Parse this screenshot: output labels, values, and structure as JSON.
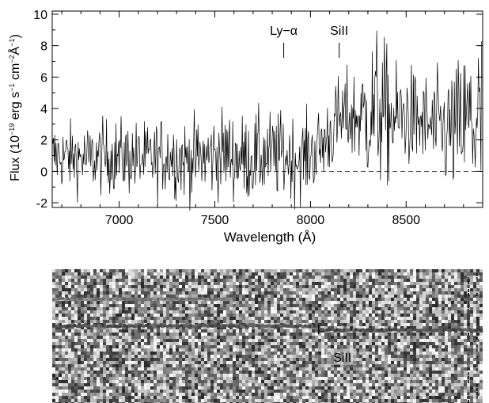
{
  "chart_data": [
    {
      "type": "line",
      "title": "",
      "xlabel": "Wavelength (Å)",
      "ylabel_parts": {
        "prefix": "Flux (10",
        "exp1": "−19",
        "mid1": " erg s",
        "exp2": "−1",
        "mid2": " cm",
        "exp3": "−2",
        "mid3": "Å",
        "exp4": "−1",
        "suffix": ")"
      },
      "xlim": [
        6650,
        8900
      ],
      "ylim": [
        -2.3,
        10.2
      ],
      "xticks": [
        7000,
        7500,
        8000,
        8500
      ],
      "yticks": [
        -2,
        0,
        2,
        4,
        6,
        8,
        10
      ],
      "zero_line": {
        "y": 0,
        "style": "dashed"
      },
      "annotations": [
        {
          "text": "Ly−α",
          "x": 7860
        },
        {
          "text": "SiII",
          "x": 8150
        }
      ],
      "series": [
        {
          "x": [
            6650,
            6750,
            6850,
            6950,
            7050,
            7150,
            7250,
            7350,
            7450,
            7550,
            7650,
            7750,
            7850,
            7950,
            8050,
            8100,
            8150,
            8200,
            8250,
            8300,
            8350,
            8400,
            8450,
            8500,
            8550,
            8600,
            8650,
            8700,
            8750,
            8800,
            8850,
            8900
          ],
          "values": [
            1.0,
            0.9,
            0.8,
            1.0,
            0.9,
            0.7,
            1.1,
            0.7,
            0.9,
            1.2,
            0.8,
            1.0,
            1.0,
            0.8,
            1.5,
            2.4,
            3.2,
            3.5,
            3.4,
            3.6,
            4.0,
            3.5,
            3.2,
            3.6,
            3.2,
            3.0,
            2.7,
            2.6,
            2.5,
            3.0,
            3.1,
            3.0
          ],
          "noise_sigma": [
            1.1,
            1.1,
            1.1,
            1.2,
            1.2,
            1.2,
            1.3,
            1.3,
            1.3,
            1.4,
            1.4,
            1.4,
            1.4,
            1.3,
            1.3,
            1.4,
            1.4,
            1.5,
            1.6,
            2.2,
            2.6,
            2.2,
            1.8,
            1.7,
            1.6,
            1.6,
            1.7,
            1.9,
            2.1,
            2.4,
            3.0,
            3.4
          ]
        }
      ]
    },
    {
      "type": "heatmap",
      "title": "",
      "annotations": [
        {
          "text": "SiII",
          "x": 8150
        }
      ],
      "traces": [
        {
          "row_fraction": 0.22,
          "from_x_fraction": 0.0,
          "to_x_fraction": 0.42,
          "strength": 0.55
        },
        {
          "row_fraction": 0.42,
          "from_x_fraction": 0.0,
          "to_x_fraction": 0.62,
          "strength": 0.8
        },
        {
          "row_fraction": 0.45,
          "from_x_fraction": 0.62,
          "to_x_fraction": 1.0,
          "strength": 0.85
        }
      ]
    }
  ]
}
